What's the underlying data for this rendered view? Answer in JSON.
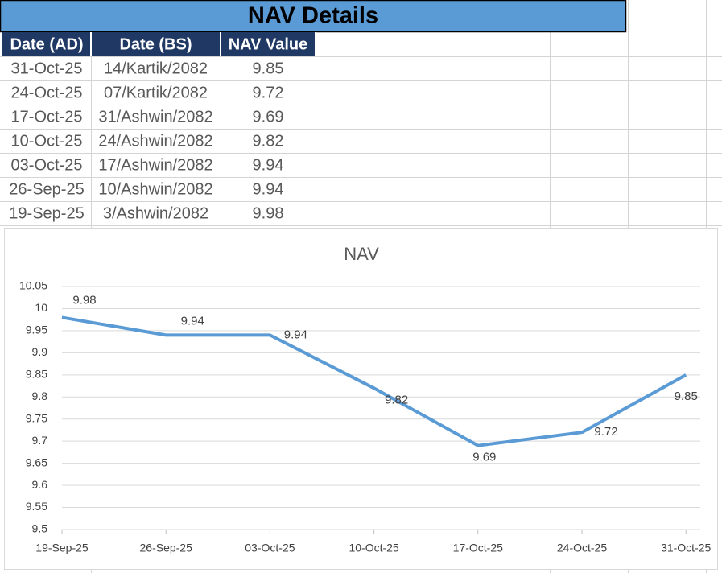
{
  "table": {
    "title": "NAV Details",
    "headers": [
      "Date (AD)",
      "Date (BS)",
      "NAV Value"
    ],
    "rows": [
      [
        "31-Oct-25",
        "14/Kartik/2082",
        "9.85"
      ],
      [
        "24-Oct-25",
        "07/Kartik/2082",
        "9.72"
      ],
      [
        "17-Oct-25",
        "31/Ashwin/2082",
        "9.69"
      ],
      [
        "10-Oct-25",
        "24/Ashwin/2082",
        "9.82"
      ],
      [
        "03-Oct-25",
        "17/Ashwin/2082",
        "9.94"
      ],
      [
        "26-Sep-25",
        "10/Ashwin/2082",
        "9.94"
      ],
      [
        "19-Sep-25",
        "3/Ashwin/2082",
        "9.98"
      ]
    ]
  },
  "chart_data": {
    "type": "line",
    "title": "NAV",
    "categories": [
      "19-Sep-25",
      "26-Sep-25",
      "03-Oct-25",
      "10-Oct-25",
      "17-Oct-25",
      "24-Oct-25",
      "31-Oct-25"
    ],
    "series": [
      {
        "name": "NAV Value",
        "color": "#5b9bd5",
        "values": [
          9.98,
          9.94,
          9.94,
          9.82,
          9.69,
          9.72,
          9.85
        ]
      }
    ],
    "ylim": [
      9.5,
      10.05
    ],
    "yticks": [
      9.5,
      9.55,
      9.6,
      9.65,
      9.7,
      9.75,
      9.8,
      9.85,
      9.9,
      9.95,
      10,
      10.05
    ],
    "grid": true,
    "data_labels": true
  }
}
